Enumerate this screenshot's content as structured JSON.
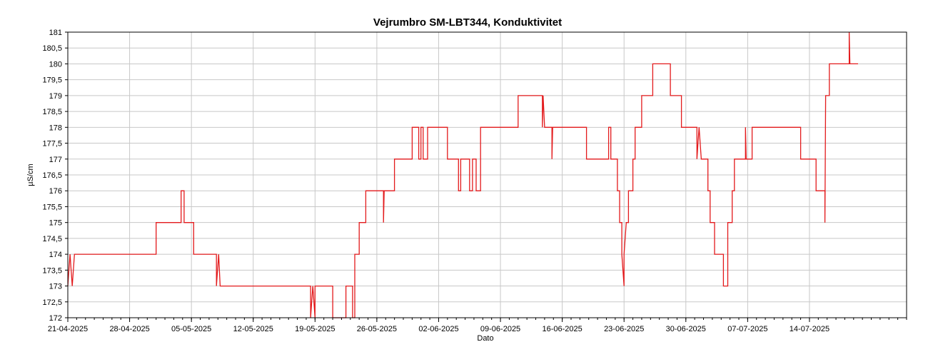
{
  "chart_data": {
    "type": "line",
    "title": "Vejrumbro SM-LBT344, Konduktivitet",
    "xlabel": "Dato",
    "ylabel": "µS/cm",
    "xlim": [
      "2025-04-21",
      "2025-07-25"
    ],
    "ylim": [
      172,
      181
    ],
    "grid": true,
    "x_ticks": [
      "21-04-2025",
      "28-04-2025",
      "05-05-2025",
      "12-05-2025",
      "19-05-2025",
      "26-05-2025",
      "02-06-2025",
      "09-06-2025",
      "16-06-2025",
      "23-06-2025",
      "30-06-2025",
      "07-07-2025",
      "14-07-2025"
    ],
    "y_ticks": [
      "172",
      "172,5",
      "173",
      "173,5",
      "174",
      "174,5",
      "175",
      "175,5",
      "176",
      "176,5",
      "177",
      "177,5",
      "178",
      "178,5",
      "179",
      "179,5",
      "180",
      "180,5",
      "181"
    ],
    "series": [
      {
        "name": "",
        "color": "#e31a1c",
        "points": [
          [
            "2025-04-21 00:00",
            173
          ],
          [
            "2025-04-21 06:00",
            174
          ],
          [
            "2025-04-21 12:00",
            173
          ],
          [
            "2025-04-21 18:00",
            174
          ],
          [
            "2025-05-01 00:00",
            174
          ],
          [
            "2025-05-01 00:00",
            175
          ],
          [
            "2025-05-03 20:00",
            175
          ],
          [
            "2025-05-03 20:00",
            176
          ],
          [
            "2025-05-04 04:00",
            176
          ],
          [
            "2025-05-04 04:00",
            175
          ],
          [
            "2025-05-05 06:00",
            175
          ],
          [
            "2025-05-05 06:00",
            174
          ],
          [
            "2025-05-07 20:00",
            174
          ],
          [
            "2025-05-07 20:00",
            173
          ],
          [
            "2025-05-08 02:00",
            174
          ],
          [
            "2025-05-08 06:00",
            173
          ],
          [
            "2025-05-18 12:00",
            173
          ],
          [
            "2025-05-18 12:00",
            172
          ],
          [
            "2025-05-18 18:00",
            173
          ],
          [
            "2025-05-19 00:00",
            172
          ],
          [
            "2025-05-19 00:00",
            173
          ],
          [
            "2025-05-21 00:00",
            173
          ],
          [
            "2025-05-21 00:00",
            172
          ],
          [
            "2025-05-22 12:00",
            172
          ],
          [
            "2025-05-22 12:00",
            173
          ],
          [
            "2025-05-23 06:00",
            173
          ],
          [
            "2025-05-23 06:00",
            172
          ],
          [
            "2025-05-23 12:00",
            172
          ],
          [
            "2025-05-23 12:00",
            174
          ],
          [
            "2025-05-24 00:00",
            174
          ],
          [
            "2025-05-24 00:00",
            175
          ],
          [
            "2025-05-24 18:00",
            175
          ],
          [
            "2025-05-24 18:00",
            176
          ],
          [
            "2025-05-26 18:00",
            176
          ],
          [
            "2025-05-26 18:00",
            175
          ],
          [
            "2025-05-26 20:00",
            176
          ],
          [
            "2025-05-28 00:00",
            176
          ],
          [
            "2025-05-28 00:00",
            177
          ],
          [
            "2025-05-30 00:00",
            177
          ],
          [
            "2025-05-30 00:00",
            178
          ],
          [
            "2025-05-30 18:00",
            178
          ],
          [
            "2025-05-30 18:00",
            177
          ],
          [
            "2025-05-31 00:00",
            177
          ],
          [
            "2025-05-31 00:00",
            178
          ],
          [
            "2025-05-31 06:00",
            178
          ],
          [
            "2025-05-31 06:00",
            177
          ],
          [
            "2025-05-31 18:00",
            177
          ],
          [
            "2025-05-31 18:00",
            178
          ],
          [
            "2025-06-03 00:00",
            178
          ],
          [
            "2025-06-03 00:00",
            177
          ],
          [
            "2025-06-04 06:00",
            177
          ],
          [
            "2025-06-04 06:00",
            176
          ],
          [
            "2025-06-04 12:00",
            176
          ],
          [
            "2025-06-04 12:00",
            177
          ],
          [
            "2025-06-05 12:00",
            177
          ],
          [
            "2025-06-05 12:00",
            176
          ],
          [
            "2025-06-05 20:00",
            176
          ],
          [
            "2025-06-05 20:00",
            177
          ],
          [
            "2025-06-06 06:00",
            177
          ],
          [
            "2025-06-06 06:00",
            176
          ],
          [
            "2025-06-06 18:00",
            176
          ],
          [
            "2025-06-06 18:00",
            178
          ],
          [
            "2025-06-11 00:00",
            178
          ],
          [
            "2025-06-11 00:00",
            179
          ],
          [
            "2025-06-13 18:00",
            179
          ],
          [
            "2025-06-13 18:00",
            178
          ],
          [
            "2025-06-13 20:00",
            179
          ],
          [
            "2025-06-14 00:00",
            178
          ],
          [
            "2025-06-14 20:00",
            178
          ],
          [
            "2025-06-14 20:00",
            177
          ],
          [
            "2025-06-14 22:00",
            178
          ],
          [
            "2025-06-18 18:00",
            178
          ],
          [
            "2025-06-18 18:00",
            177
          ],
          [
            "2025-06-21 06:00",
            177
          ],
          [
            "2025-06-21 06:00",
            178
          ],
          [
            "2025-06-21 12:00",
            178
          ],
          [
            "2025-06-21 12:00",
            177
          ],
          [
            "2025-06-22 06:00",
            177
          ],
          [
            "2025-06-22 06:00",
            176
          ],
          [
            "2025-06-22 12:00",
            176
          ],
          [
            "2025-06-22 12:00",
            175
          ],
          [
            "2025-06-22 18:00",
            175
          ],
          [
            "2025-06-22 18:00",
            174
          ],
          [
            "2025-06-23 00:00",
            173
          ],
          [
            "2025-06-23 00:00",
            174
          ],
          [
            "2025-06-23 06:00",
            175
          ],
          [
            "2025-06-23 12:00",
            175
          ],
          [
            "2025-06-23 12:00",
            176
          ],
          [
            "2025-06-24 00:00",
            176
          ],
          [
            "2025-06-24 00:00",
            177
          ],
          [
            "2025-06-24 06:00",
            177
          ],
          [
            "2025-06-24 06:00",
            178
          ],
          [
            "2025-06-25 00:00",
            178
          ],
          [
            "2025-06-25 00:00",
            179
          ],
          [
            "2025-06-26 06:00",
            179
          ],
          [
            "2025-06-26 06:00",
            180
          ],
          [
            "2025-06-28 06:00",
            180
          ],
          [
            "2025-06-28 06:00",
            179
          ],
          [
            "2025-06-29 12:00",
            179
          ],
          [
            "2025-06-29 12:00",
            178
          ],
          [
            "2025-07-01 06:00",
            178
          ],
          [
            "2025-07-01 06:00",
            177
          ],
          [
            "2025-07-01 12:00",
            178
          ],
          [
            "2025-07-01 18:00",
            177
          ],
          [
            "2025-07-02 12:00",
            177
          ],
          [
            "2025-07-02 12:00",
            176
          ],
          [
            "2025-07-02 18:00",
            176
          ],
          [
            "2025-07-02 18:00",
            175
          ],
          [
            "2025-07-03 06:00",
            175
          ],
          [
            "2025-07-03 06:00",
            174
          ],
          [
            "2025-07-04 06:00",
            174
          ],
          [
            "2025-07-04 06:00",
            173
          ],
          [
            "2025-07-04 18:00",
            173
          ],
          [
            "2025-07-04 18:00",
            175
          ],
          [
            "2025-07-05 06:00",
            175
          ],
          [
            "2025-07-05 06:00",
            176
          ],
          [
            "2025-07-05 12:00",
            176
          ],
          [
            "2025-07-05 12:00",
            177
          ],
          [
            "2025-07-06 18:00",
            177
          ],
          [
            "2025-07-06 18:00",
            178
          ],
          [
            "2025-07-06 20:00",
            177
          ],
          [
            "2025-07-07 12:00",
            177
          ],
          [
            "2025-07-07 12:00",
            178
          ],
          [
            "2025-07-13 00:00",
            178
          ],
          [
            "2025-07-13 00:00",
            177
          ],
          [
            "2025-07-14 18:00",
            177
          ],
          [
            "2025-07-14 18:00",
            176
          ],
          [
            "2025-07-15 18:00",
            176
          ],
          [
            "2025-07-15 18:00",
            175
          ],
          [
            "2025-07-15 20:00",
            179
          ],
          [
            "2025-07-16 06:00",
            179
          ],
          [
            "2025-07-16 06:00",
            180
          ],
          [
            "2025-07-18 12:00",
            180
          ],
          [
            "2025-07-18 12:00",
            181
          ],
          [
            "2025-07-18 14:00",
            180
          ],
          [
            "2025-07-19 12:00",
            180
          ]
        ]
      }
    ]
  }
}
